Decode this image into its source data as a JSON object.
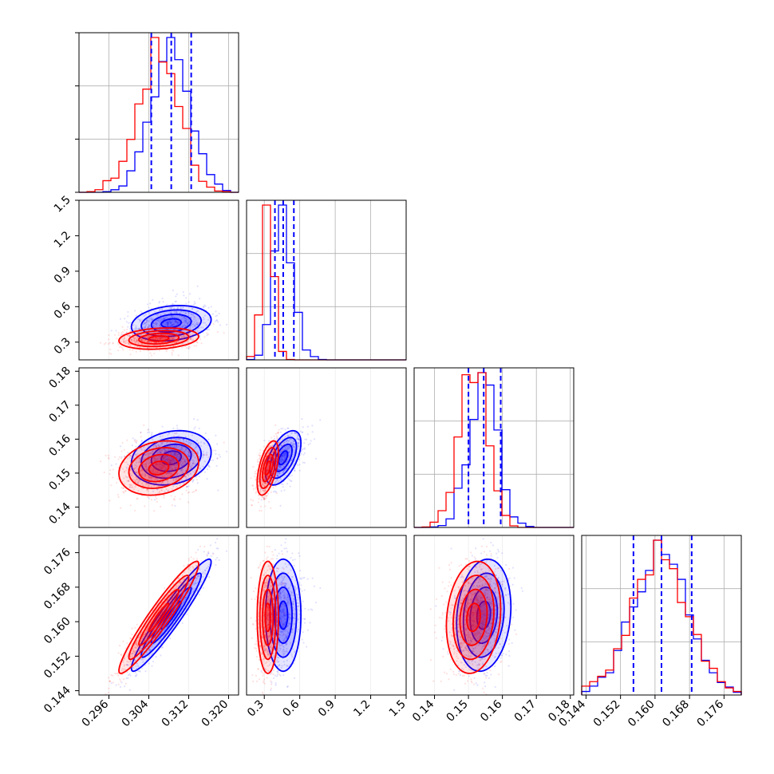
{
  "chart_data": {
    "type": "corner",
    "parameters": 4,
    "series": [
      {
        "color": "#0000ff"
      },
      {
        "color": "#ff0000"
      }
    ],
    "params": [
      {
        "range": [
          0.29,
          0.322
        ],
        "ticks": [
          0.296,
          0.304,
          0.312,
          0.32
        ],
        "tick_labels": [
          "0.296",
          "0.304",
          "0.312",
          "0.320"
        ],
        "blue": {
          "mean": 0.3085,
          "sd": 0.004
        },
        "red": {
          "mean": 0.306,
          "sd": 0.004
        },
        "quantiles": [
          0.3045,
          0.3085,
          0.3125
        ]
      },
      {
        "range": [
          0.15,
          1.5
        ],
        "ticks": [
          0.3,
          0.6,
          0.9,
          1.2,
          1.5
        ],
        "tick_labels": [
          "0.3",
          "0.6",
          "0.9",
          "1.2",
          "1.5"
        ],
        "blue": {
          "mean": 0.46,
          "sd": 0.075,
          "skew": 3.0
        },
        "red": {
          "mean": 0.33,
          "sd": 0.045,
          "skew": 2.0
        },
        "quantiles": [
          0.39,
          0.46,
          0.55
        ]
      },
      {
        "range": [
          0.134,
          0.181
        ],
        "ticks": [
          0.14,
          0.15,
          0.16,
          0.17,
          0.18
        ],
        "tick_labels": [
          "0.14",
          "0.15",
          "0.16",
          "0.17",
          "0.18"
        ],
        "blue": {
          "mean": 0.1545,
          "sd": 0.004
        },
        "red": {
          "mean": 0.1515,
          "sd": 0.004
        },
        "quantiles": [
          0.15,
          0.1545,
          0.1595
        ]
      },
      {
        "range": [
          0.143,
          0.18
        ],
        "ticks": [
          0.144,
          0.152,
          0.16,
          0.168,
          0.176
        ],
        "tick_labels": [
          "0.144",
          "0.152",
          "0.160",
          "0.168",
          "0.176"
        ],
        "blue": {
          "mean": 0.1615,
          "sd": 0.0065
        },
        "red": {
          "mean": 0.161,
          "sd": 0.0065
        },
        "quantiles": [
          0.155,
          0.1615,
          0.1685
        ]
      }
    ],
    "histogram_bins": 20,
    "contour_levels": [
      0.5,
      1.0,
      1.5,
      2.0
    ],
    "grid": true,
    "legend": "none"
  }
}
